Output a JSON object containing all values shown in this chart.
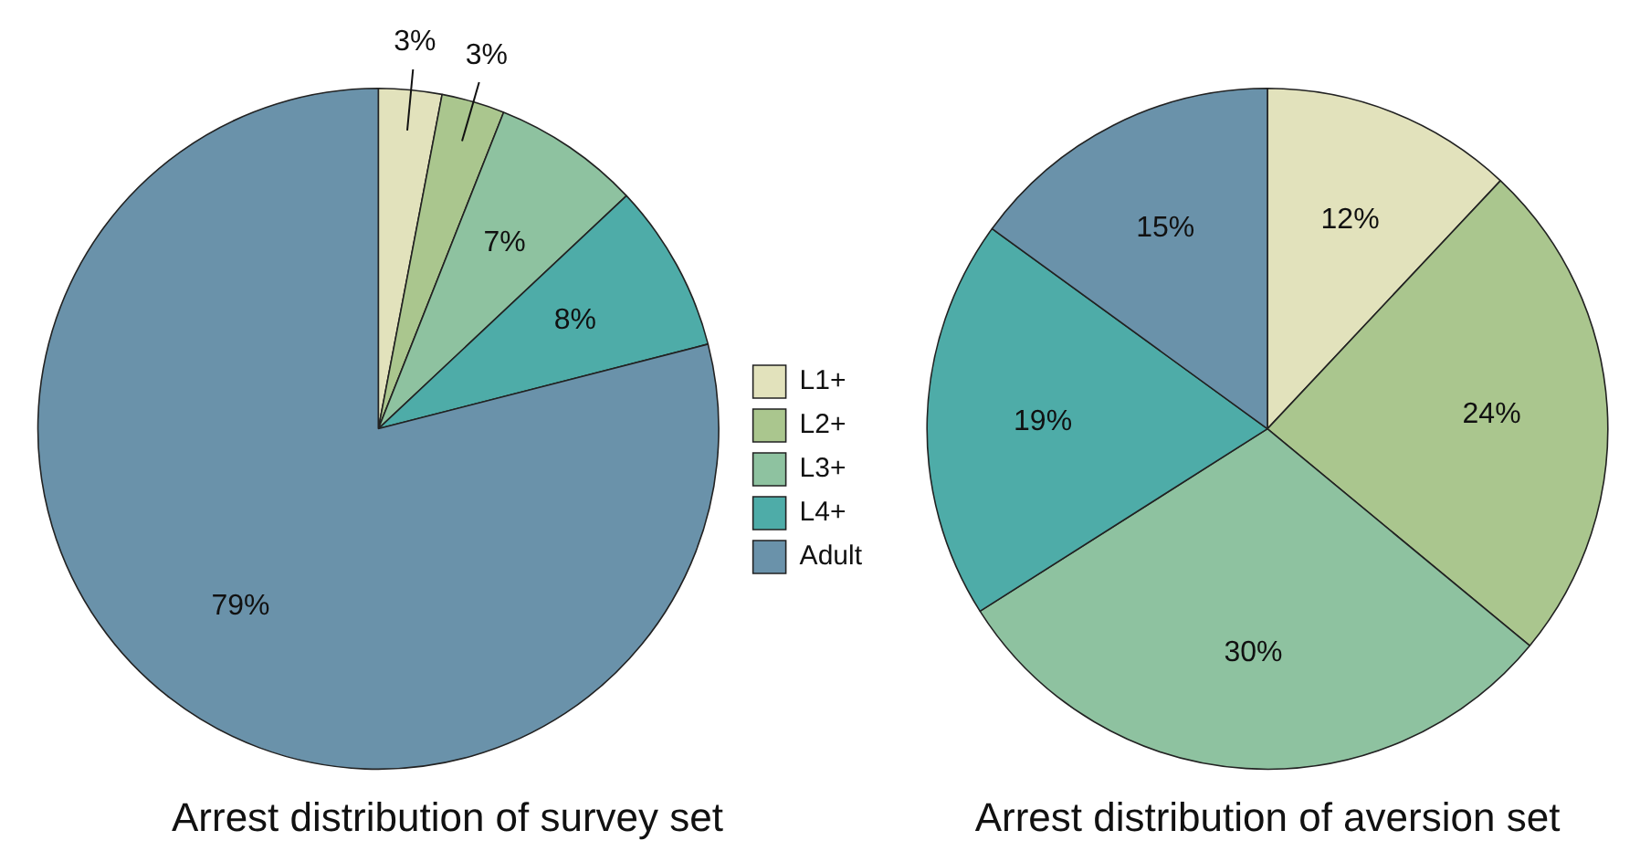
{
  "chart_data": [
    {
      "type": "pie",
      "title": "Arrest distribution of survey set",
      "categories": [
        "L1+",
        "L2+",
        "L3+",
        "L4+",
        "Adult"
      ],
      "values": [
        3,
        3,
        7,
        8,
        79
      ],
      "value_labels": [
        "3%",
        "3%",
        "7%",
        "8%",
        "79%"
      ],
      "colors": [
        "#e2e2bc",
        "#aac68e",
        "#8ec2a0",
        "#4eaca8",
        "#6a92aa"
      ],
      "legend": "right"
    },
    {
      "type": "pie",
      "title": "Arrest distribution of aversion set",
      "categories": [
        null,
        null,
        null,
        null,
        null
      ],
      "values": [
        12,
        24,
        30,
        19,
        15
      ],
      "value_labels": [
        "12%",
        "24%",
        "30%",
        "19%",
        "15%"
      ],
      "colors": [
        "#e2e2bc",
        "#aac68e",
        "#8ec2a0",
        "#4eaca8",
        "#6a92aa"
      ]
    }
  ]
}
